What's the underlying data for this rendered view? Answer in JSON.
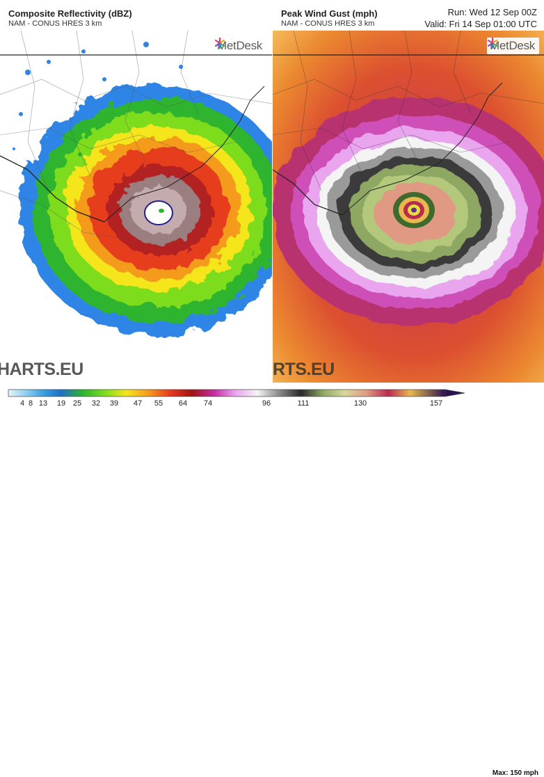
{
  "left_panel": {
    "title": "Composite Reflectivity (dBZ)",
    "subtitle": "NAM - CONUS HRES 3 km",
    "logo": "MetDesk",
    "watermark": "HARTS.EU"
  },
  "right_panel": {
    "title": "Peak Wind Gust (mph)",
    "subtitle": "NAM - CONUS HRES 3 km",
    "run": "Run: Wed 12 Sep 00Z",
    "valid": "Valid: Fri 14 Sep 01:00 UTC",
    "logo": "MetDesk",
    "watermark": "RTS.EU"
  },
  "color_scale": {
    "ticks": [
      "4",
      "8",
      "13",
      "19",
      "25",
      "32",
      "39",
      "47",
      "55",
      "64",
      "74",
      "96",
      "111",
      "130",
      "157"
    ],
    "max_label": "Max: 150 mph"
  },
  "colors": {
    "reflectivity": [
      "#3fa6e8",
      "#1565d8",
      "#2db42d",
      "#7ddc1e",
      "#f5e61e",
      "#f59b1e",
      "#e63c1e",
      "#a01414",
      "#8c7878",
      "#b49ea0"
    ],
    "wind": [
      "#f7c95f",
      "#f08a2f",
      "#e2542a",
      "#c2305a",
      "#cf4fb8",
      "#e9a6ef",
      "#f2f2f2",
      "#4a4a4a",
      "#8ea864",
      "#e0a070"
    ]
  }
}
